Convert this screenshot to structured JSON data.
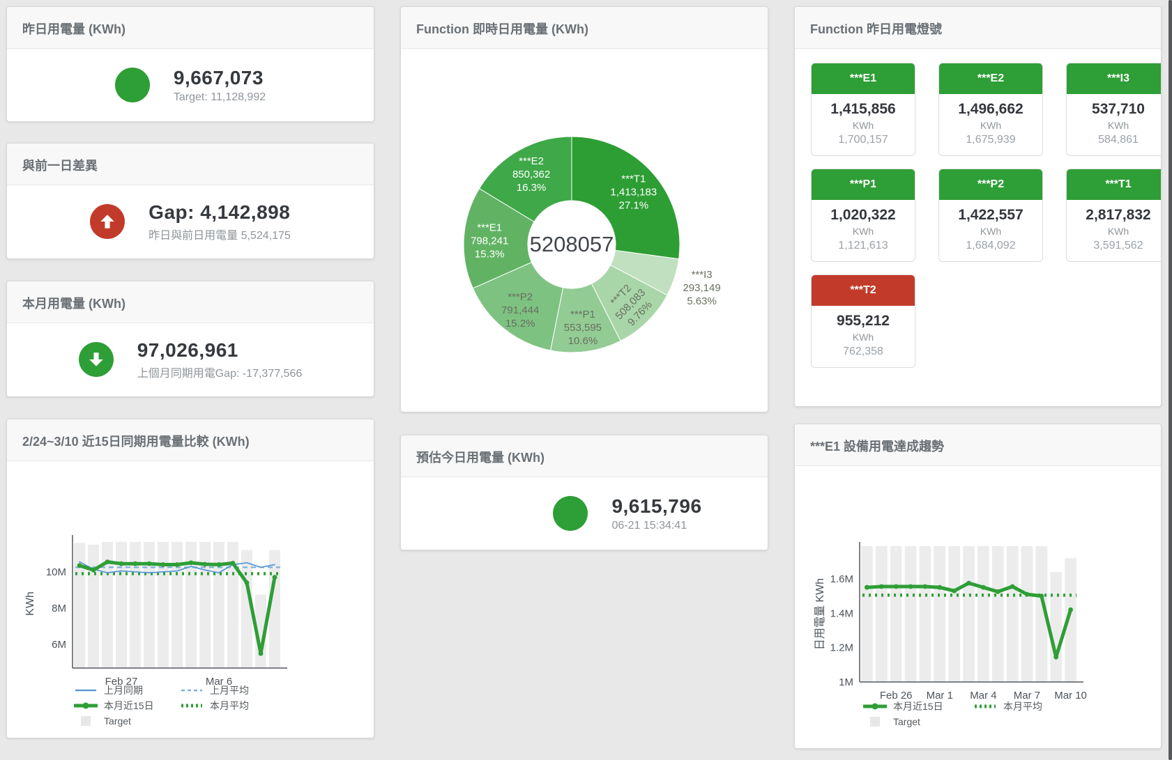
{
  "colors": {
    "green": "#2e9e36",
    "red": "#c23b2a",
    "blue": "#5b9bd5",
    "blue_dashed": "#7fb0dc",
    "bar_gray": "#ececec",
    "legend_gray": "#e7e7e7",
    "axis": "#55595e",
    "tick_text": "#4d5359"
  },
  "cards": {
    "yesterday": {
      "title": "昨日用電量 (KWh)",
      "value": "9,667,073",
      "subtitle": "Target: 11,128,992",
      "status": "green"
    },
    "gap": {
      "title": "與前一日差異",
      "value": "Gap: 4,142,898",
      "subtitle": "昨日與前日用電量 5,524,175",
      "icon": "up-arrow",
      "status": "red"
    },
    "month": {
      "title": "本月用電量 (KWh)",
      "value": "97,026,961",
      "subtitle": "上個月同期用電Gap: -17,377,566",
      "icon": "down-arrow",
      "status": "green"
    },
    "estimate": {
      "title": "預估今日用電量 (KWh)",
      "value": "9,615,796",
      "subtitle": "06-21 15:34:41",
      "status": "green"
    }
  },
  "lights": {
    "title": "Function 昨日用電燈號",
    "unit": "KWh",
    "tiles": [
      {
        "name": "***E1",
        "value": "1,415,856",
        "target": "1,700,157",
        "status": "green"
      },
      {
        "name": "***E2",
        "value": "1,496,662",
        "target": "1,675,939",
        "status": "green"
      },
      {
        "name": "***I3",
        "value": "537,710",
        "target": "584,861",
        "status": "green"
      },
      {
        "name": "***P1",
        "value": "1,020,322",
        "target": "1,121,613",
        "status": "green"
      },
      {
        "name": "***P2",
        "value": "1,422,557",
        "target": "1,684,092",
        "status": "green"
      },
      {
        "name": "***T1",
        "value": "2,817,832",
        "target": "3,591,562",
        "status": "green"
      },
      {
        "name": "***T2",
        "value": "955,212",
        "target": "762,358",
        "status": "red"
      }
    ]
  },
  "chart_data": [
    {
      "id": "donut",
      "type": "pie",
      "title": "Function 即時日用電量 (KWh)",
      "center_label": "5208057",
      "slices": [
        {
          "name": "***T1",
          "value": "1,413,183",
          "pct": "27.1%",
          "pct_num": 27.1,
          "color": "#2d9e34",
          "label": "inside-light"
        },
        {
          "name": "***I3",
          "value": "293,149",
          "pct": "5.63%",
          "pct_num": 5.63,
          "color": "#c0e0c0",
          "label": "outside"
        },
        {
          "name": "***T2",
          "value": "508,083",
          "pct": "9.76%",
          "pct_num": 9.76,
          "color": "#a9d6a9",
          "label": "inside-dark-rotated"
        },
        {
          "name": "***P1",
          "value": "553,595",
          "pct": "10.6%",
          "pct_num": 10.6,
          "color": "#93cb94",
          "label": "inside-dark"
        },
        {
          "name": "***P2",
          "value": "791,444",
          "pct": "15.2%",
          "pct_num": 15.2,
          "color": "#7ec281",
          "label": "inside-dark"
        },
        {
          "name": "***E1",
          "value": "798,241",
          "pct": "15.3%",
          "pct_num": 15.3,
          "color": "#61b363",
          "label": "inside-light"
        },
        {
          "name": "***E2",
          "value": "850,362",
          "pct": "16.3%",
          "pct_num": 16.3,
          "color": "#3fa848",
          "label": "inside-light"
        }
      ]
    },
    {
      "id": "compare",
      "type": "line",
      "title": "2/24~3/10 近15日同期用電量比較 (KWh)",
      "ylabel": "KWh",
      "unit": "M KWh",
      "ylim": [
        4.7,
        11.8
      ],
      "yticks": [
        {
          "v": 6,
          "label": "6M"
        },
        {
          "v": 8,
          "label": "8M"
        },
        {
          "v": 10,
          "label": "10M"
        }
      ],
      "categories": [
        "2/24",
        "2/25",
        "2/26",
        "2/27",
        "2/28",
        "3/1",
        "3/2",
        "3/3",
        "3/4",
        "3/5",
        "3/6",
        "3/7",
        "3/8",
        "3/9",
        "3/10"
      ],
      "xticks": [
        {
          "i": 3,
          "label": "Feb 27"
        },
        {
          "i": 10,
          "label": "Mar 6"
        }
      ],
      "series": [
        {
          "name": "Target",
          "type": "bar",
          "color": "#ececec",
          "values": [
            11.6,
            11.5,
            11.65,
            11.65,
            11.65,
            11.65,
            11.65,
            11.65,
            11.65,
            11.65,
            11.65,
            11.65,
            11.2,
            8.75,
            11.2
          ]
        },
        {
          "name": "上月同期",
          "type": "line",
          "color": "#5b9bd5",
          "values": [
            10.55,
            10.15,
            9.95,
            10.05,
            10.0,
            9.95,
            10.0,
            10.05,
            10.3,
            10.1,
            9.95,
            10.4,
            10.5,
            10.25,
            10.4
          ]
        },
        {
          "name": "上月平均",
          "type": "dashed",
          "color": "#7fb0dc",
          "value": 10.25
        },
        {
          "name": "本月近15日",
          "type": "line-thick",
          "color": "#2e9e36",
          "values": [
            10.35,
            10.1,
            10.55,
            10.45,
            10.45,
            10.45,
            10.4,
            10.4,
            10.5,
            10.42,
            10.4,
            10.48,
            9.4,
            5.5,
            9.7
          ]
        },
        {
          "name": "本月平均",
          "type": "dotted",
          "color": "#2e9e36",
          "value": 9.9
        }
      ],
      "legend_rows": [
        [
          "上月同期",
          "上月平均"
        ],
        [
          "本月近15日",
          "本月平均"
        ],
        [
          "Target"
        ]
      ]
    },
    {
      "id": "trend",
      "type": "line",
      "title": "***E1 設備用電達成趨勢",
      "ylabel": "日用電量 KWh",
      "unit": "M KWh",
      "ylim": [
        1.0,
        1.79
      ],
      "yticks": [
        {
          "v": 1,
          "label": "1M"
        },
        {
          "v": 1.2,
          "label": "1.2M"
        },
        {
          "v": 1.4,
          "label": "1.4M"
        },
        {
          "v": 1.6,
          "label": "1.6M"
        }
      ],
      "categories": [
        "2/24",
        "2/25",
        "2/26",
        "2/27",
        "2/28",
        "3/1",
        "3/2",
        "3/3",
        "3/4",
        "3/5",
        "3/6",
        "3/7",
        "3/8",
        "3/9",
        "3/10"
      ],
      "xticks": [
        {
          "i": 2,
          "label": "Feb 26"
        },
        {
          "i": 5,
          "label": "Mar 1"
        },
        {
          "i": 8,
          "label": "Mar 4"
        },
        {
          "i": 11,
          "label": "Mar 7"
        },
        {
          "i": 14,
          "label": "Mar 10"
        }
      ],
      "series": [
        {
          "name": "Target",
          "type": "bar",
          "color": "#ececec",
          "values": [
            1.79,
            1.79,
            1.79,
            1.79,
            1.79,
            1.79,
            1.79,
            1.79,
            1.79,
            1.79,
            1.79,
            1.79,
            1.79,
            1.64,
            1.72
          ]
        },
        {
          "name": "本月近15日",
          "type": "line-thick",
          "color": "#2e9e36",
          "values": [
            1.55,
            1.555,
            1.555,
            1.555,
            1.555,
            1.55,
            1.53,
            1.575,
            1.55,
            1.525,
            1.555,
            1.51,
            1.5,
            1.145,
            1.42
          ]
        },
        {
          "name": "本月平均",
          "type": "dotted",
          "color": "#2e9e36",
          "value": 1.505
        }
      ],
      "legend_rows": [
        [
          "本月近15日",
          "本月平均"
        ],
        [
          "Target"
        ]
      ]
    }
  ]
}
